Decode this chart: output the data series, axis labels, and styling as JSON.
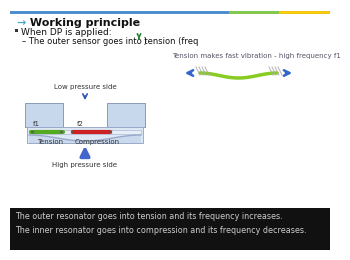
{
  "title_arrow": "→",
  "title_text": " Working principle",
  "bullet1": "When DP is applied:",
  "sub1": "The outer sensor goes into tension (freq",
  "sub1_arrow": "↑",
  "sub1_end": " )",
  "label_low": "Low pressure side",
  "label_high": "High pressure side",
  "label_tension": "Tension",
  "label_compression": "Compression",
  "label_f1": "f1",
  "label_f2": "f2",
  "tension_caption": "Tension makes fast vibration - high frequency f1",
  "footer1": "The outer resonator goes into tension and its frequency increases.",
  "footer2": "The inner resonator goes into compression and its frequency decreases.",
  "bg_white": "#ffffff",
  "bg_black": "#111111",
  "footer_text_color": "#cccccc",
  "arrow_blue_dark": "#3355bb",
  "arrow_blue_big": "#4466cc",
  "sensor_green": "#55aa22",
  "sensor_red": "#cc2222",
  "box_fill_top": "#c8d8ec",
  "box_fill_bot": "#c8d8ec",
  "box_stroke": "#8899bb",
  "diaphragm_fill": "#dde8f4",
  "diaphragm_stroke": "#99aacc",
  "plate_fill": "#e8eef8",
  "title_arrow_color": "#44aacc",
  "header_line_blue": "#4488cc",
  "header_line_green": "#88cc44",
  "header_line_yellow": "#ffcc00",
  "vib_green": "#88cc22",
  "vib_arrow": "#3366cc",
  "vib_hash": "#aaaaaa"
}
